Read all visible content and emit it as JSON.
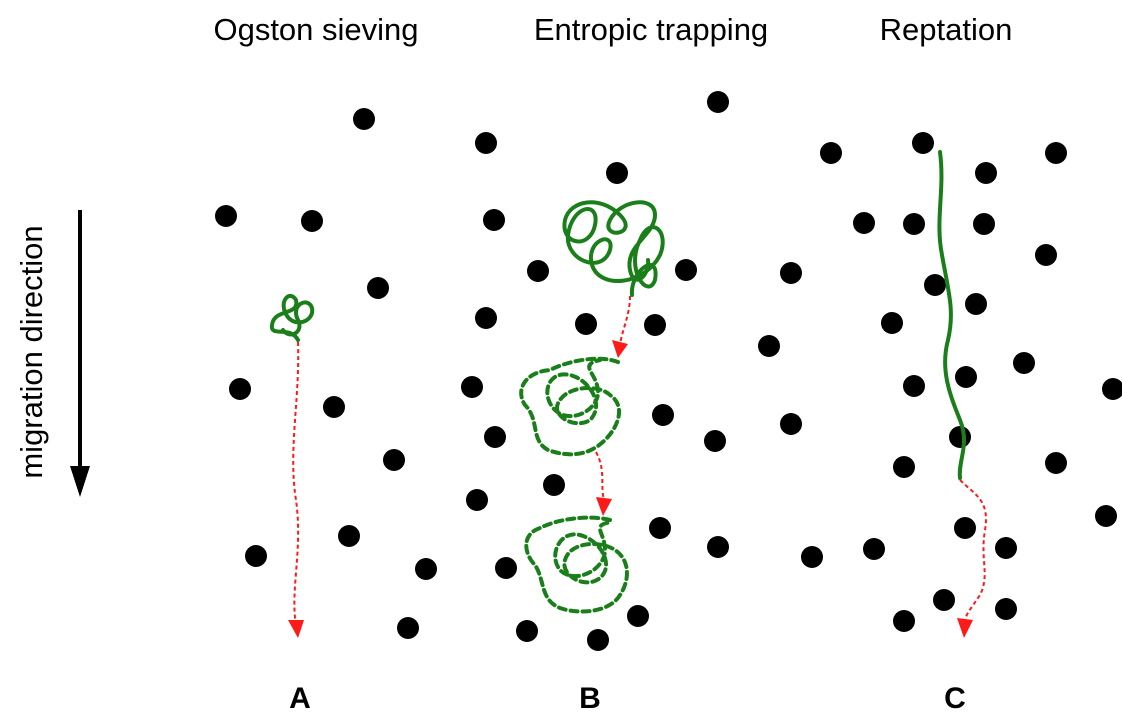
{
  "titles": [
    "Ogston sieving",
    "Entropic trapping",
    "Reptation"
  ],
  "axis_label": "migration direction",
  "labels": [
    "A",
    "B",
    "C"
  ]
}
